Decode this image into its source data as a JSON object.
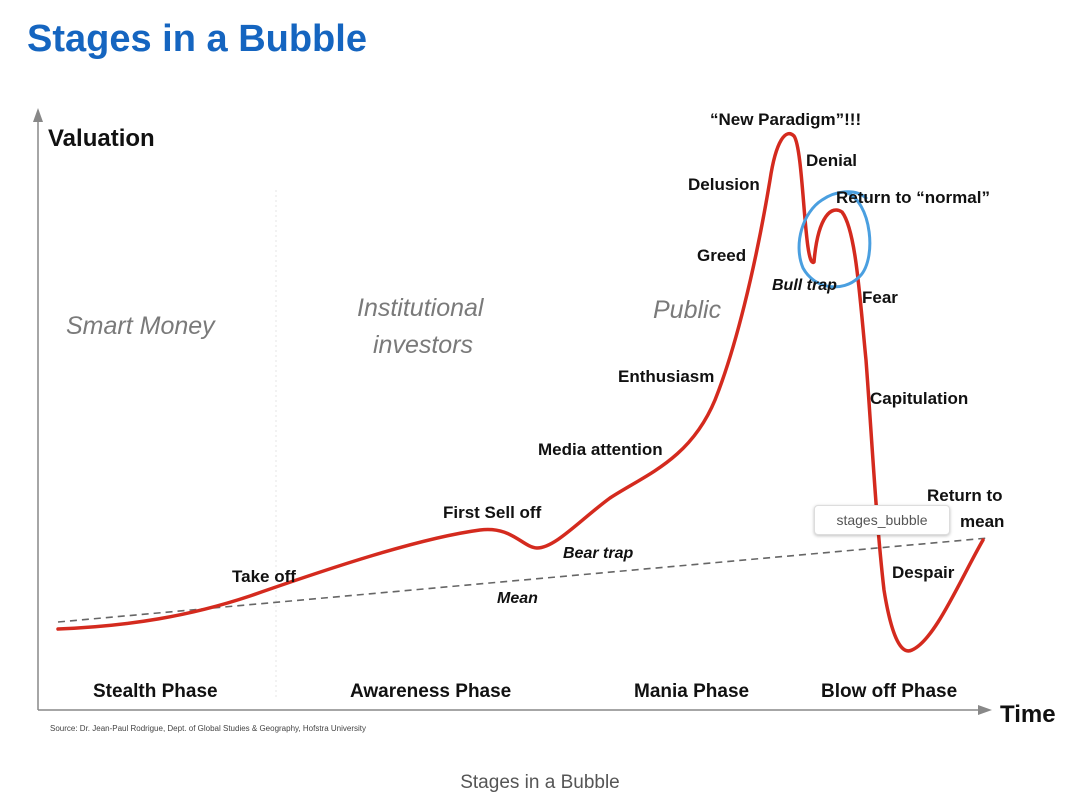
{
  "title": "Stages in a Bubble",
  "caption": "Stages in a Bubble",
  "axes": {
    "y_label": "Valuation",
    "x_label": "Time"
  },
  "groups": {
    "smart_money": "Smart Money",
    "institutional_1": "Institutional",
    "institutional_2": "investors",
    "public": "Public"
  },
  "stages": {
    "new_paradigm": "“New Paradigm”!!!",
    "denial": "Denial",
    "delusion": "Delusion",
    "return_normal": "Return to “normal”",
    "greed": "Greed",
    "bull_trap": "Bull trap",
    "fear": "Fear",
    "enthusiasm": "Enthusiasm",
    "capitulation": "Capitulation",
    "media_attention": "Media attention",
    "return_mean_1": "Return to",
    "return_mean_2": "mean",
    "first_sell_off": "First Sell off",
    "bear_trap": "Bear trap",
    "take_off": "Take off",
    "despair": "Despair",
    "mean": "Mean"
  },
  "phases": {
    "stealth": "Stealth Phase",
    "awareness": "Awareness Phase",
    "mania": "Mania Phase",
    "blow_off": "Blow off Phase"
  },
  "source": "Source: Dr. Jean-Paul Rodrigue, Dept. of Global Studies & Geography, Hofstra University",
  "tooltip": "stages_bubble",
  "colors": {
    "title": "#1565c0",
    "curve": "#d42a1e",
    "highlight_circle": "#4a9fe0",
    "mean_line": "#666666"
  }
}
